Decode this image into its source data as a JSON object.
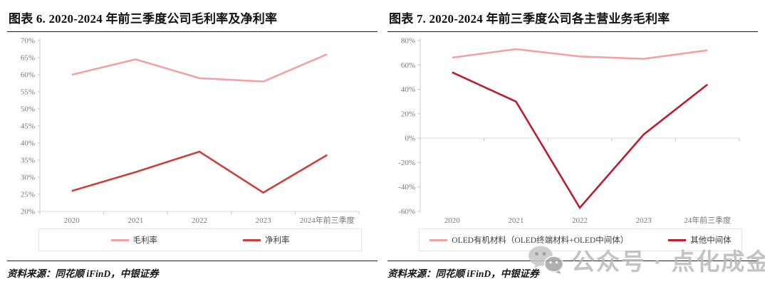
{
  "page": {
    "background": "#ffffff"
  },
  "watermark": {
    "icon": "wechat-icon",
    "text": "公众号 · 点化成金",
    "color": "#b9b9b9"
  },
  "chart_data": [
    {
      "type": "line",
      "title": "图表 6. 2020-2024 年前三季度公司毛利率及净利率",
      "source": "资料来源：同花顺 iFinD，中银证券",
      "categories": [
        "2020",
        "2021",
        "2022",
        "2023",
        "2024年前三季度"
      ],
      "series": [
        {
          "name": "毛利率",
          "color": "#efa3a2",
          "values": [
            60,
            64.5,
            59,
            58,
            66
          ]
        },
        {
          "name": "净利率",
          "color": "#c8413d",
          "values": [
            26,
            31.5,
            37.5,
            25.5,
            36.5
          ]
        }
      ],
      "ylim": [
        20,
        70
      ],
      "yticks": [
        70,
        65,
        60,
        55,
        50,
        45,
        40,
        35,
        30,
        25,
        20
      ],
      "ytick_suffix": "%",
      "grid": "off",
      "legend_position": "bottom"
    },
    {
      "type": "line",
      "title": "图表 7. 2020-2024 年前三季度公司各主营业务毛利率",
      "source": "资料来源：同花顺 iFinD，中银证券",
      "categories": [
        "2020",
        "2021",
        "2022",
        "2023",
        "24年前三季度"
      ],
      "series": [
        {
          "name": "OLED有机材料（OLED终端材料+OLED中间体）",
          "color": "#efa3a2",
          "values": [
            66,
            73,
            67,
            65,
            72
          ]
        },
        {
          "name": "其他中间体",
          "color": "#b91f2e",
          "values": [
            54,
            30,
            -57,
            3,
            44
          ]
        }
      ],
      "ylim": [
        -60,
        80
      ],
      "yticks": [
        80,
        60,
        40,
        20,
        0,
        -20,
        -40,
        -60
      ],
      "ytick_suffix": "%",
      "grid": "zero-line-only",
      "legend_position": "bottom"
    }
  ]
}
